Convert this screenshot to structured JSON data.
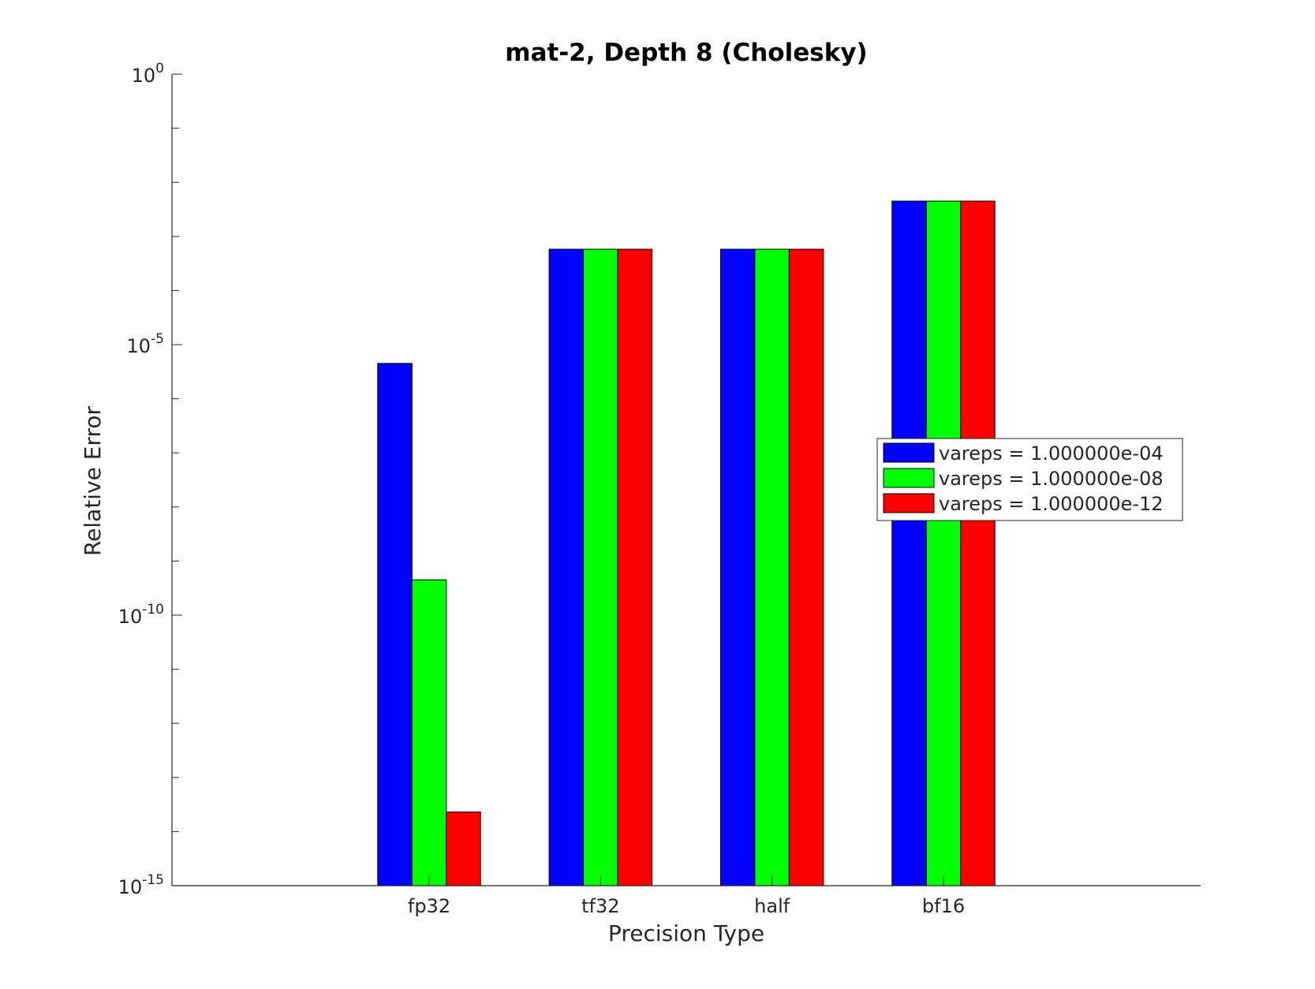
{
  "chart_data": {
    "type": "bar",
    "title": "mat-2, Depth 8 (Cholesky)",
    "xlabel": "Precision Type",
    "ylabel": "Relative Error",
    "y_scale": "log",
    "ylim": [
      1e-15,
      1
    ],
    "y_ticks": [
      {
        "base": "10",
        "exp": "0",
        "value": 1
      },
      {
        "base": "10",
        "exp": "-5",
        "value": 1e-05
      },
      {
        "base": "10",
        "exp": "-10",
        "value": 1e-10
      },
      {
        "base": "10",
        "exp": "-15",
        "value": 1e-15
      }
    ],
    "categories": [
      "fp32",
      "tf32",
      "half",
      "bf16"
    ],
    "series": [
      {
        "name": "vareps = 1.000000e-04",
        "color": "#0000ff",
        "values": [
          4.5e-06,
          0.00058,
          0.00058,
          0.0045
        ]
      },
      {
        "name": "vareps = 1.000000e-08",
        "color": "#00ff00",
        "values": [
          4.5e-10,
          0.00058,
          0.00058,
          0.0045
        ]
      },
      {
        "name": "vareps = 1.000000e-12",
        "color": "#ff0000",
        "values": [
          2.3e-14,
          0.00058,
          0.00058,
          0.0045
        ]
      }
    ],
    "grid": false,
    "legend_position": "right"
  }
}
